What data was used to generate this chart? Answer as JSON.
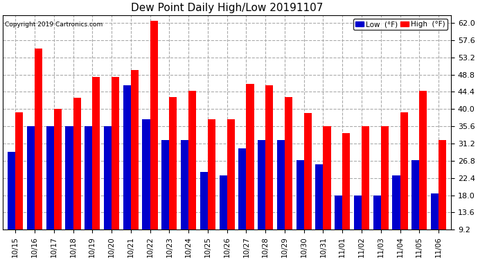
{
  "title": "Dew Point Daily High/Low 20191107",
  "copyright": "Copyright 2019 Cartronics.com",
  "dates": [
    "10/15",
    "10/16",
    "10/17",
    "10/18",
    "10/19",
    "10/20",
    "10/21",
    "10/22",
    "10/23",
    "10/24",
    "10/25",
    "10/26",
    "10/27",
    "10/28",
    "10/29",
    "10/30",
    "10/31",
    "11/01",
    "11/02",
    "11/03",
    "11/04",
    "11/05",
    "11/06"
  ],
  "low": [
    29.0,
    35.6,
    35.6,
    35.6,
    35.6,
    35.6,
    46.0,
    37.4,
    32.0,
    32.0,
    24.0,
    23.0,
    30.0,
    32.0,
    32.0,
    27.0,
    25.8,
    18.0,
    18.0,
    18.0,
    23.0,
    27.0,
    18.5
  ],
  "high": [
    39.2,
    55.4,
    40.0,
    42.8,
    48.2,
    48.2,
    50.0,
    62.6,
    43.0,
    44.6,
    37.4,
    37.4,
    46.4,
    46.0,
    43.0,
    39.0,
    35.6,
    33.8,
    35.6,
    35.6,
    39.2,
    44.6,
    32.0
  ],
  "low_color": "#0000cc",
  "high_color": "#ff0000",
  "bg_color": "#ffffff",
  "grid_color": "#aaaaaa",
  "ylim_min": 9.2,
  "ylim_max": 64.0,
  "yticks": [
    9.2,
    13.6,
    18.0,
    22.4,
    26.8,
    31.2,
    35.6,
    40.0,
    44.4,
    48.8,
    53.2,
    57.6,
    62.0
  ]
}
